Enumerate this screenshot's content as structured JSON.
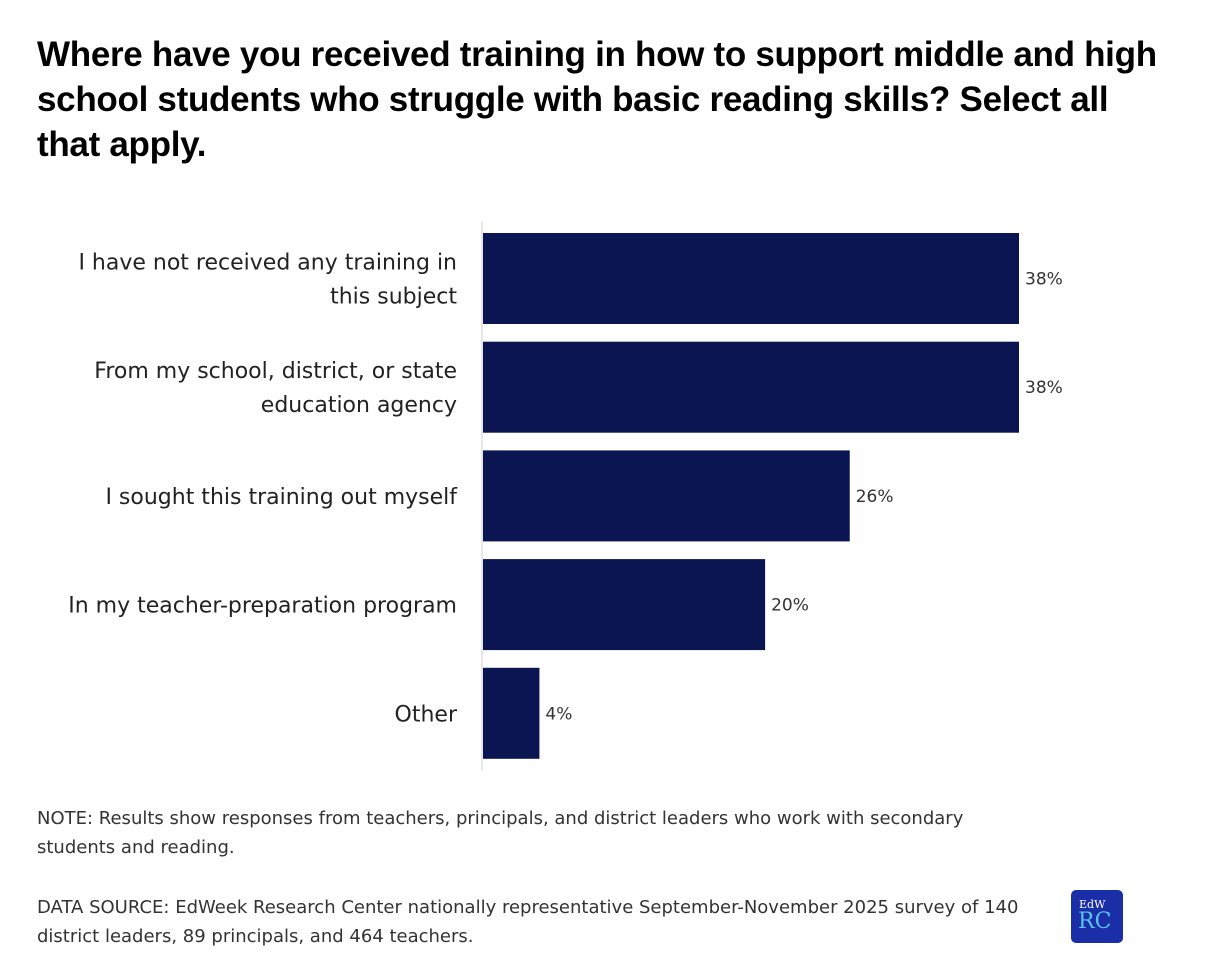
{
  "chart_data": {
    "type": "bar",
    "orientation": "horizontal",
    "title": "Where have you received training in how to support middle and high school students who struggle with basic reading skills? Select all that apply.",
    "categories": [
      [
        "I have not received any training in",
        "this subject"
      ],
      [
        "From my school, district, or state",
        "education agency"
      ],
      [
        "I sought this training out myself"
      ],
      [
        "In my teacher-preparation program"
      ],
      [
        "Other"
      ]
    ],
    "values": [
      38,
      38,
      26,
      20,
      4
    ],
    "value_labels": [
      "38%",
      "38%",
      "26%",
      "20%",
      "4%"
    ],
    "xlim": [
      0,
      38
    ],
    "grid": false,
    "bar_color": "#0a1551"
  },
  "note": "NOTE: Results show responses from teachers, principals, and district leaders who work with secondary students and reading.",
  "source": "DATA SOURCE: EdWeek Research Center nationally representative September-November 2025 survey of 140 district leaders, 89 principals, and 464 teachers.",
  "logo": {
    "top": "EdW",
    "bottom": "RC",
    "color": "#1a2ea8"
  }
}
